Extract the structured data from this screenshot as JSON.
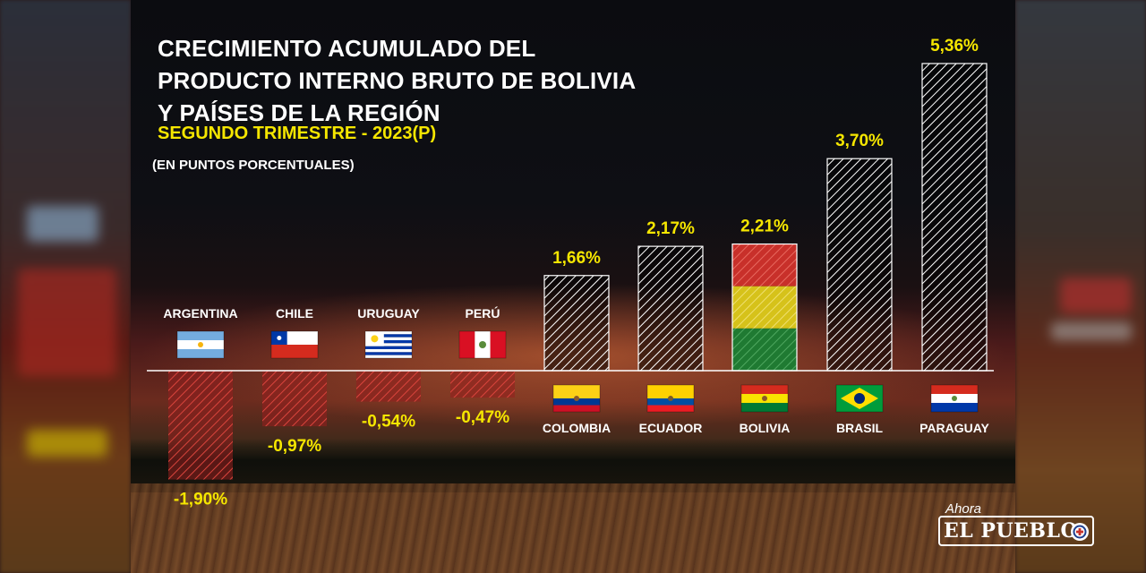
{
  "header": {
    "title_lines": [
      "CRECIMIENTO ACUMULADO DEL",
      "PRODUCTO INTERNO BRUTO DE BOLIVIA",
      "Y PAÍSES DE LA REGIÓN"
    ],
    "subtitle": "SEGUNDO TRIMESTRE - 2023(P)",
    "unit": "(EN PUNTOS PORCENTUALES)"
  },
  "logo": {
    "prefix": "Ahora",
    "name": "EL PUEBLO"
  },
  "colors": {
    "positive_label": "#f5e600",
    "negative_bar": "#c2322f",
    "bar_pattern": "#ffffff",
    "axis": "#ffffff"
  },
  "chart_data": {
    "type": "bar",
    "title": "CRECIMIENTO ACUMULADO DEL PRODUCTO INTERNO BRUTO DE BOLIVIA Y PAÍSES DE LA REGIÓN",
    "subtitle": "SEGUNDO TRIMESTRE - 2023(P)",
    "ylabel": "(EN PUNTOS PORCENTUALES)",
    "categories": [
      "ARGENTINA",
      "CHILE",
      "URUGUAY",
      "PERÚ",
      "COLOMBIA",
      "ECUADOR",
      "BOLIVIA",
      "BRASIL",
      "PARAGUAY"
    ],
    "values": [
      -1.9,
      -0.97,
      -0.54,
      -0.47,
      1.66,
      2.17,
      2.21,
      3.7,
      5.36
    ],
    "value_labels": [
      "-1,90%",
      "-0,97%",
      "-0,54%",
      "-0,47%",
      "1,66%",
      "2,17%",
      "2,21%",
      "3,70%",
      "5,36%"
    ],
    "flags": [
      "argentina-flag",
      "chile-flag",
      "uruguay-flag",
      "peru-flag",
      "colombia-flag",
      "ecuador-flag",
      "bolivia-flag",
      "brazil-flag",
      "paraguay-flag"
    ],
    "ylim": [
      -2,
      5.5
    ],
    "grid": false,
    "legend": "none"
  }
}
